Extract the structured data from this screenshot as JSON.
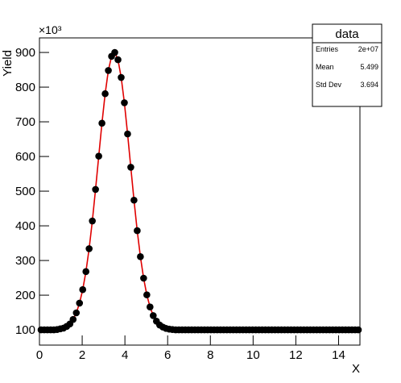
{
  "chart_data": {
    "type": "histogram",
    "y_label": "Yield",
    "x_label": "X",
    "multiplier": "×10³",
    "bins": [
      0,
      0.15,
      0.3,
      0.45,
      0.6,
      0.75,
      0.9,
      1.05,
      1.2,
      1.35,
      1.5,
      1.65,
      1.8,
      1.95,
      2.1,
      2.25,
      2.4,
      2.55,
      2.7,
      2.85,
      3,
      3.15,
      3.3,
      3.45,
      3.6,
      3.75,
      3.9,
      4.05,
      4.2,
      4.35,
      4.5,
      4.65,
      4.8,
      4.95,
      5.1,
      5.25,
      5.4,
      5.55,
      5.7,
      5.85,
      6,
      6.15,
      6.3,
      6.45,
      6.6,
      6.75,
      6.9,
      7.05,
      7.2,
      7.35,
      7.5,
      7.65,
      7.8,
      7.95,
      8.1,
      8.25,
      8.4,
      8.55,
      8.7,
      8.85,
      9,
      9.15,
      9.3,
      9.45,
      9.6,
      9.75,
      9.9,
      10.05,
      10.2,
      10.35,
      10.5,
      10.65,
      10.8,
      10.95,
      11.1,
      11.25,
      11.4,
      11.55,
      11.7,
      11.85,
      12,
      12.15,
      12.3,
      12.45,
      12.6,
      12.75,
      12.9,
      13.05,
      13.2,
      13.35,
      13.5,
      13.65,
      13.8,
      13.95,
      14.1,
      14.25,
      14.4,
      14.55,
      14.7,
      14.85,
      15
    ],
    "values": [
      100,
      100,
      100,
      100,
      100,
      101,
      103,
      105,
      110,
      117,
      130,
      149,
      177,
      216,
      268,
      334,
      414,
      505,
      601,
      696,
      781,
      848,
      889,
      900,
      879,
      828,
      755,
      665,
      569,
      474,
      386,
      311,
      249,
      201,
      166,
      141,
      125,
      114,
      108,
      104,
      102,
      101,
      100,
      100,
      100,
      100,
      100,
      100,
      100,
      100,
      100,
      100,
      100,
      100,
      100,
      100,
      100,
      100,
      100,
      100,
      100,
      100,
      100,
      100,
      100,
      100,
      100,
      100,
      100,
      100,
      100,
      100,
      100,
      100,
      100,
      100,
      100,
      100,
      100,
      100,
      100,
      100,
      100,
      100,
      100,
      100,
      100,
      100,
      100,
      100,
      100,
      100,
      100,
      100,
      100,
      100,
      100,
      100,
      100,
      100
    ],
    "marker_color": "#000000",
    "line_color": "#e00000",
    "xlim": [
      0,
      15
    ],
    "xticks": [
      0,
      2,
      4,
      6,
      8,
      10,
      12,
      14
    ],
    "ylim": [
      56,
      942
    ],
    "yticks": [
      100,
      200,
      300,
      400,
      500,
      600,
      700,
      800,
      900
    ],
    "stats": {
      "title": "data",
      "rows": [
        [
          "Entries",
          "2e+07"
        ],
        [
          "Mean",
          "5.499"
        ],
        [
          "Std Dev",
          "3.694"
        ]
      ]
    }
  }
}
